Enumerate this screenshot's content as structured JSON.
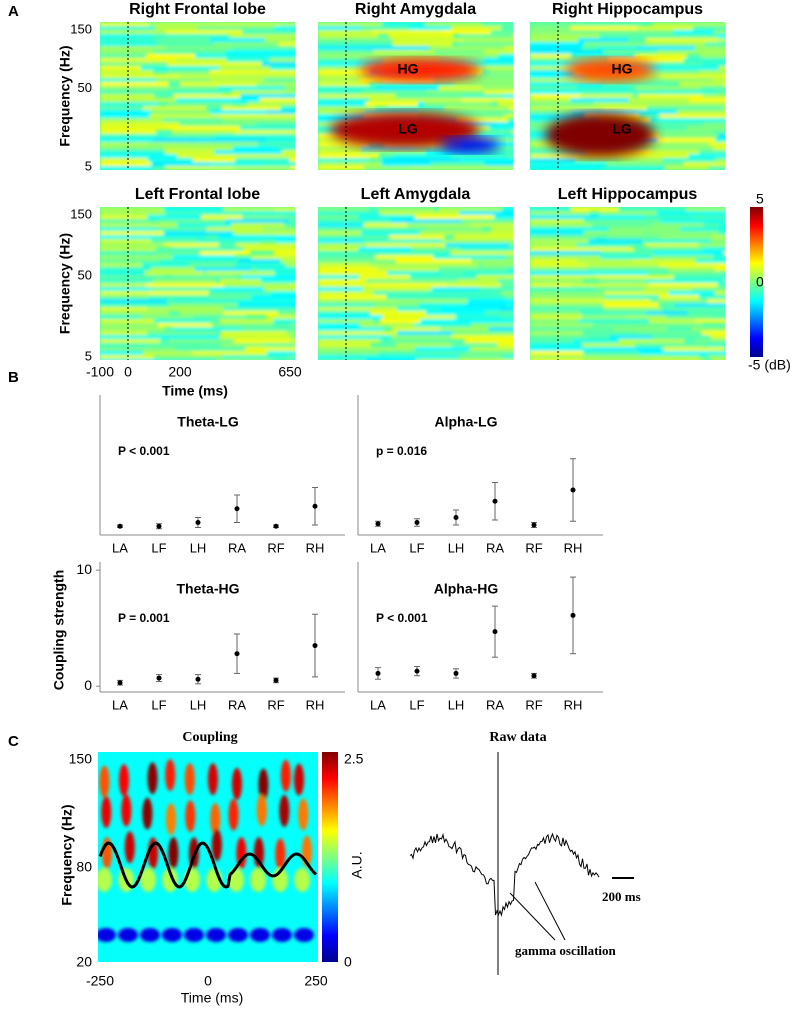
{
  "panel_labels": [
    "A",
    "B",
    "C"
  ],
  "panel_a": {
    "maps": [
      {
        "title": "Right Frontal lobe"
      },
      {
        "title": "Right Amygdala",
        "annotations": [
          "HG",
          "LG"
        ]
      },
      {
        "title": "Right Hippocampus",
        "annotations": [
          "HG",
          "LG"
        ]
      },
      {
        "title": "Left Frontal lobe"
      },
      {
        "title": "Left Amygdala"
      },
      {
        "title": "Left Hippocampus"
      }
    ],
    "y_label": "Frequency (Hz)",
    "y_ticks": [
      "150",
      "50",
      "5"
    ],
    "x_ticks": [
      "-100",
      "0",
      "200",
      "650"
    ],
    "x_label": "Time (ms)",
    "colorbar_ticks": [
      "5",
      "0",
      "-5 (dB)"
    ]
  },
  "y_label_b": "Coupling strength",
  "chart_data": [
    {
      "type": "errorbar",
      "title": "Theta-LG",
      "annotation": "P < 0.001",
      "categories": [
        "LA",
        "LF",
        "LH",
        "RA",
        "RF",
        "RH"
      ],
      "values": [
        0.2,
        0.2,
        0.5,
        1.6,
        0.2,
        1.8
      ],
      "errors": [
        0.1,
        0.2,
        0.4,
        1.1,
        0.1,
        1.5
      ],
      "ylim": [
        -0.5,
        10.7
      ],
      "color": "#000000"
    },
    {
      "type": "errorbar",
      "title": "Alpha-LG",
      "annotation": "p = 0.016",
      "categories": [
        "LA",
        "LF",
        "LH",
        "RA",
        "RF",
        "RH"
      ],
      "values": [
        0.4,
        0.5,
        0.9,
        2.2,
        0.3,
        3.1
      ],
      "errors": [
        0.2,
        0.3,
        0.6,
        1.5,
        0.2,
        2.5
      ],
      "ylim": [
        -0.5,
        10.7
      ],
      "color": "#000000"
    },
    {
      "type": "errorbar",
      "title": "Theta-HG",
      "annotation": "P = 0.001",
      "categories": [
        "LA",
        "LF",
        "LH",
        "RA",
        "RF",
        "RH"
      ],
      "values": [
        0.3,
        0.7,
        0.6,
        2.8,
        0.5,
        3.5
      ],
      "errors": [
        0.2,
        0.3,
        0.4,
        1.7,
        0.2,
        2.7
      ],
      "ylim": [
        -0.5,
        10.7
      ],
      "yticks": [
        0,
        10
      ],
      "color": "#000000"
    },
    {
      "type": "errorbar",
      "title": "Alpha-HG",
      "annotation": "P < 0.001",
      "categories": [
        "LA",
        "LF",
        "LH",
        "RA",
        "RF",
        "RH"
      ],
      "values": [
        1.1,
        1.3,
        1.1,
        4.7,
        0.9,
        6.1
      ],
      "errors": [
        0.5,
        0.4,
        0.4,
        2.2,
        0.2,
        3.3
      ],
      "ylim": [
        -0.5,
        10.7
      ],
      "color": "#000000"
    }
  ],
  "panel_c": {
    "left_title": "Coupling",
    "right_title": "Raw data",
    "y_label": "Frequency (Hz)",
    "y_ticks": [
      "150",
      "80",
      "20"
    ],
    "x_ticks": [
      "-250",
      "0",
      "250"
    ],
    "x_label": "Time (ms)",
    "colorbar_ticks": [
      "2.5",
      "0"
    ],
    "colorbar_label": "A.U.",
    "scale_bar": "200 ms",
    "annotation": "gamma oscillation"
  }
}
